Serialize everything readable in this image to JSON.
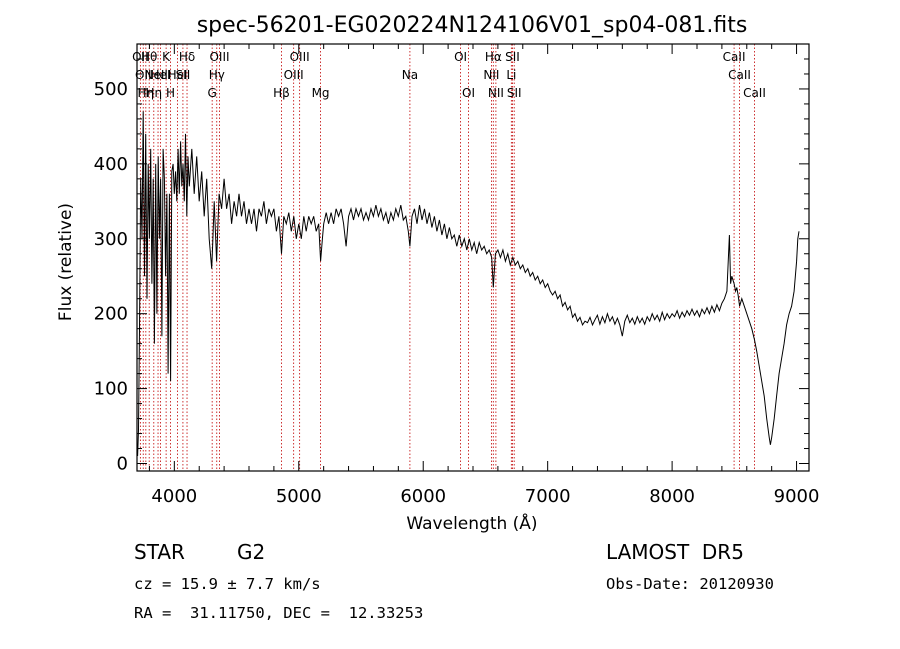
{
  "chart_data": {
    "type": "line",
    "title": "spec-56201-EG020224N124106V01_sp04-081.fits",
    "xlabel": "Wavelength (Å)",
    "ylabel": "Flux (relative)",
    "xlim": [
      3700,
      9100
    ],
    "ylim": [
      -10,
      560
    ],
    "x_ticks": [
      4000,
      5000,
      6000,
      7000,
      8000,
      9000
    ],
    "y_ticks": [
      0,
      100,
      200,
      300,
      400,
      500
    ],
    "grid": false,
    "line_color": "#000000",
    "marker_color": "#c00000",
    "spectrum": [
      [
        3705,
        10
      ],
      [
        3712,
        45
      ],
      [
        3720,
        180
      ],
      [
        3730,
        380
      ],
      [
        3740,
        300
      ],
      [
        3750,
        470
      ],
      [
        3760,
        250
      ],
      [
        3770,
        440
      ],
      [
        3780,
        220
      ],
      [
        3790,
        400
      ],
      [
        3800,
        300
      ],
      [
        3810,
        420
      ],
      [
        3820,
        240
      ],
      [
        3830,
        380
      ],
      [
        3840,
        160
      ],
      [
        3850,
        400
      ],
      [
        3860,
        200
      ],
      [
        3870,
        410
      ],
      [
        3880,
        300
      ],
      [
        3890,
        380
      ],
      [
        3900,
        170
      ],
      [
        3910,
        420
      ],
      [
        3920,
        380
      ],
      [
        3930,
        250
      ],
      [
        3940,
        360
      ],
      [
        3950,
        120
      ],
      [
        3960,
        360
      ],
      [
        3970,
        110
      ],
      [
        3980,
        390
      ],
      [
        3990,
        400
      ],
      [
        4000,
        360
      ],
      [
        4010,
        390
      ],
      [
        4020,
        350
      ],
      [
        4030,
        420
      ],
      [
        4040,
        360
      ],
      [
        4050,
        430
      ],
      [
        4060,
        370
      ],
      [
        4070,
        400
      ],
      [
        4080,
        350
      ],
      [
        4090,
        440
      ],
      [
        4100,
        330
      ],
      [
        4110,
        410
      ],
      [
        4120,
        370
      ],
      [
        4140,
        420
      ],
      [
        4160,
        360
      ],
      [
        4180,
        410
      ],
      [
        4200,
        350
      ],
      [
        4220,
        390
      ],
      [
        4240,
        330
      ],
      [
        4260,
        380
      ],
      [
        4280,
        300
      ],
      [
        4300,
        260
      ],
      [
        4310,
        300
      ],
      [
        4320,
        350
      ],
      [
        4340,
        270
      ],
      [
        4360,
        360
      ],
      [
        4380,
        340
      ],
      [
        4400,
        380
      ],
      [
        4420,
        340
      ],
      [
        4440,
        360
      ],
      [
        4460,
        320
      ],
      [
        4480,
        350
      ],
      [
        4500,
        330
      ],
      [
        4520,
        360
      ],
      [
        4540,
        330
      ],
      [
        4560,
        350
      ],
      [
        4580,
        320
      ],
      [
        4600,
        340
      ],
      [
        4620,
        320
      ],
      [
        4640,
        340
      ],
      [
        4660,
        310
      ],
      [
        4680,
        340
      ],
      [
        4700,
        330
      ],
      [
        4720,
        350
      ],
      [
        4740,
        320
      ],
      [
        4760,
        340
      ],
      [
        4780,
        330
      ],
      [
        4800,
        340
      ],
      [
        4820,
        310
      ],
      [
        4840,
        330
      ],
      [
        4861,
        280
      ],
      [
        4880,
        330
      ],
      [
        4900,
        320
      ],
      [
        4920,
        335
      ],
      [
        4940,
        310
      ],
      [
        4960,
        330
      ],
      [
        4980,
        300
      ],
      [
        5000,
        320
      ],
      [
        5020,
        300
      ],
      [
        5040,
        330
      ],
      [
        5060,
        310
      ],
      [
        5080,
        330
      ],
      [
        5100,
        320
      ],
      [
        5120,
        330
      ],
      [
        5140,
        310
      ],
      [
        5160,
        320
      ],
      [
        5175,
        270
      ],
      [
        5190,
        300
      ],
      [
        5200,
        320
      ],
      [
        5220,
        335
      ],
      [
        5240,
        320
      ],
      [
        5260,
        335
      ],
      [
        5280,
        320
      ],
      [
        5300,
        340
      ],
      [
        5320,
        330
      ],
      [
        5340,
        340
      ],
      [
        5360,
        320
      ],
      [
        5380,
        290
      ],
      [
        5400,
        330
      ],
      [
        5420,
        340
      ],
      [
        5440,
        325
      ],
      [
        5460,
        340
      ],
      [
        5480,
        330
      ],
      [
        5500,
        340
      ],
      [
        5520,
        325
      ],
      [
        5540,
        335
      ],
      [
        5560,
        325
      ],
      [
        5580,
        340
      ],
      [
        5600,
        330
      ],
      [
        5620,
        345
      ],
      [
        5640,
        330
      ],
      [
        5660,
        340
      ],
      [
        5680,
        325
      ],
      [
        5700,
        335
      ],
      [
        5720,
        320
      ],
      [
        5740,
        335
      ],
      [
        5760,
        325
      ],
      [
        5780,
        340
      ],
      [
        5800,
        330
      ],
      [
        5820,
        345
      ],
      [
        5840,
        325
      ],
      [
        5860,
        330
      ],
      [
        5880,
        310
      ],
      [
        5893,
        290
      ],
      [
        5910,
        330
      ],
      [
        5930,
        340
      ],
      [
        5950,
        320
      ],
      [
        5970,
        345
      ],
      [
        5990,
        325
      ],
      [
        6010,
        340
      ],
      [
        6030,
        320
      ],
      [
        6050,
        335
      ],
      [
        6070,
        315
      ],
      [
        6090,
        330
      ],
      [
        6110,
        310
      ],
      [
        6130,
        325
      ],
      [
        6150,
        305
      ],
      [
        6170,
        320
      ],
      [
        6190,
        300
      ],
      [
        6210,
        315
      ],
      [
        6230,
        300
      ],
      [
        6250,
        305
      ],
      [
        6270,
        290
      ],
      [
        6290,
        305
      ],
      [
        6310,
        290
      ],
      [
        6330,
        300
      ],
      [
        6350,
        285
      ],
      [
        6370,
        300
      ],
      [
        6390,
        285
      ],
      [
        6410,
        295
      ],
      [
        6430,
        280
      ],
      [
        6450,
        295
      ],
      [
        6470,
        285
      ],
      [
        6490,
        290
      ],
      [
        6510,
        280
      ],
      [
        6530,
        285
      ],
      [
        6550,
        275
      ],
      [
        6563,
        235
      ],
      [
        6580,
        280
      ],
      [
        6600,
        285
      ],
      [
        6620,
        275
      ],
      [
        6640,
        285
      ],
      [
        6660,
        270
      ],
      [
        6680,
        280
      ],
      [
        6700,
        265
      ],
      [
        6720,
        275
      ],
      [
        6740,
        265
      ],
      [
        6760,
        270
      ],
      [
        6780,
        260
      ],
      [
        6800,
        265
      ],
      [
        6820,
        255
      ],
      [
        6840,
        260
      ],
      [
        6860,
        250
      ],
      [
        6880,
        255
      ],
      [
        6900,
        245
      ],
      [
        6920,
        250
      ],
      [
        6940,
        240
      ],
      [
        6960,
        245
      ],
      [
        6980,
        235
      ],
      [
        7000,
        240
      ],
      [
        7020,
        230
      ],
      [
        7040,
        225
      ],
      [
        7060,
        230
      ],
      [
        7080,
        220
      ],
      [
        7100,
        225
      ],
      [
        7120,
        210
      ],
      [
        7140,
        215
      ],
      [
        7160,
        205
      ],
      [
        7180,
        210
      ],
      [
        7200,
        195
      ],
      [
        7220,
        200
      ],
      [
        7240,
        190
      ],
      [
        7260,
        195
      ],
      [
        7280,
        185
      ],
      [
        7300,
        190
      ],
      [
        7320,
        188
      ],
      [
        7340,
        195
      ],
      [
        7360,
        185
      ],
      [
        7380,
        192
      ],
      [
        7400,
        198
      ],
      [
        7420,
        186
      ],
      [
        7440,
        196
      ],
      [
        7460,
        188
      ],
      [
        7480,
        200
      ],
      [
        7500,
        190
      ],
      [
        7520,
        196
      ],
      [
        7540,
        186
      ],
      [
        7560,
        194
      ],
      [
        7580,
        185
      ],
      [
        7600,
        170
      ],
      [
        7620,
        190
      ],
      [
        7640,
        198
      ],
      [
        7660,
        188
      ],
      [
        7680,
        194
      ],
      [
        7700,
        186
      ],
      [
        7720,
        196
      ],
      [
        7740,
        188
      ],
      [
        7760,
        194
      ],
      [
        7780,
        186
      ],
      [
        7800,
        196
      ],
      [
        7820,
        190
      ],
      [
        7840,
        200
      ],
      [
        7860,
        192
      ],
      [
        7880,
        198
      ],
      [
        7900,
        190
      ],
      [
        7920,
        202
      ],
      [
        7940,
        192
      ],
      [
        7960,
        200
      ],
      [
        7980,
        194
      ],
      [
        8000,
        200
      ],
      [
        8020,
        196
      ],
      [
        8040,
        204
      ],
      [
        8060,
        194
      ],
      [
        8080,
        202
      ],
      [
        8100,
        196
      ],
      [
        8120,
        204
      ],
      [
        8140,
        198
      ],
      [
        8160,
        206
      ],
      [
        8180,
        198
      ],
      [
        8200,
        204
      ],
      [
        8220,
        196
      ],
      [
        8240,
        206
      ],
      [
        8260,
        200
      ],
      [
        8280,
        208
      ],
      [
        8300,
        200
      ],
      [
        8320,
        210
      ],
      [
        8340,
        202
      ],
      [
        8360,
        212
      ],
      [
        8380,
        204
      ],
      [
        8400,
        214
      ],
      [
        8420,
        220
      ],
      [
        8440,
        230
      ],
      [
        8460,
        305
      ],
      [
        8470,
        240
      ],
      [
        8480,
        250
      ],
      [
        8498,
        240
      ],
      [
        8510,
        230
      ],
      [
        8520,
        235
      ],
      [
        8530,
        225
      ],
      [
        8542,
        210
      ],
      [
        8560,
        220
      ],
      [
        8580,
        210
      ],
      [
        8600,
        200
      ],
      [
        8620,
        190
      ],
      [
        8640,
        180
      ],
      [
        8662,
        165
      ],
      [
        8680,
        150
      ],
      [
        8700,
        130
      ],
      [
        8720,
        110
      ],
      [
        8740,
        90
      ],
      [
        8760,
        60
      ],
      [
        8780,
        35
      ],
      [
        8790,
        25
      ],
      [
        8800,
        35
      ],
      [
        8820,
        60
      ],
      [
        8840,
        90
      ],
      [
        8860,
        120
      ],
      [
        8880,
        140
      ],
      [
        8900,
        160
      ],
      [
        8920,
        185
      ],
      [
        8940,
        200
      ],
      [
        8960,
        210
      ],
      [
        8980,
        230
      ],
      [
        9000,
        270
      ],
      [
        9010,
        300
      ],
      [
        9020,
        310
      ]
    ],
    "line_markers": [
      {
        "wavelength": 3727,
        "labels": [
          "OII"
        ]
      },
      {
        "wavelength": 3750,
        "labels": [
          "",
          "OII"
        ]
      },
      {
        "wavelength": 3771,
        "labels": [
          "",
          "",
          "Hη"
        ]
      },
      {
        "wavelength": 3798,
        "labels": [
          "Hθ"
        ]
      },
      {
        "wavelength": 3835,
        "labels": [
          "",
          "",
          "Hη"
        ]
      },
      {
        "wavelength": 3869,
        "labels": [
          "",
          "NeIII"
        ]
      },
      {
        "wavelength": 3889,
        "labels": [
          "",
          "HeI"
        ]
      },
      {
        "wavelength": 3934,
        "labels": [
          "K"
        ]
      },
      {
        "wavelength": 3969,
        "labels": [
          "",
          "",
          "H"
        ]
      },
      {
        "wavelength": 4026,
        "labels": [
          "",
          "HeI"
        ]
      },
      {
        "wavelength": 4069,
        "labels": [
          "",
          "SII"
        ]
      },
      {
        "wavelength": 4102,
        "labels": [
          "Hδ"
        ]
      },
      {
        "wavelength": 4304,
        "labels": [
          "",
          "",
          "G"
        ]
      },
      {
        "wavelength": 4341,
        "labels": [
          "",
          "Hγ"
        ]
      },
      {
        "wavelength": 4363,
        "labels": [
          "OIII"
        ]
      },
      {
        "wavelength": 4861,
        "labels": [
          "",
          "",
          "Hβ"
        ]
      },
      {
        "wavelength": 4959,
        "labels": [
          "",
          "OIII"
        ]
      },
      {
        "wavelength": 5007,
        "labels": [
          "OIII"
        ]
      },
      {
        "wavelength": 5175,
        "labels": [
          "",
          "",
          "Mg"
        ]
      },
      {
        "wavelength": 5893,
        "labels": [
          "",
          "Na"
        ]
      },
      {
        "wavelength": 6300,
        "labels": [
          "OI"
        ]
      },
      {
        "wavelength": 6364,
        "labels": [
          "",
          "",
          "OI"
        ]
      },
      {
        "wavelength": 6548,
        "labels": [
          "",
          "NII"
        ]
      },
      {
        "wavelength": 6563,
        "labels": [
          "Hα"
        ]
      },
      {
        "wavelength": 6584,
        "labels": [
          "",
          "",
          "NII"
        ]
      },
      {
        "wavelength": 6708,
        "labels": [
          "",
          "Li"
        ]
      },
      {
        "wavelength": 6717,
        "labels": [
          "SII"
        ]
      },
      {
        "wavelength": 6731,
        "labels": [
          "",
          "",
          "SII"
        ]
      },
      {
        "wavelength": 8498,
        "labels": [
          "CaII"
        ]
      },
      {
        "wavelength": 8542,
        "labels": [
          "",
          "CaII"
        ]
      },
      {
        "wavelength": 8662,
        "labels": [
          "",
          "",
          "CaII"
        ]
      }
    ]
  },
  "info": {
    "class": "STAR",
    "subclass": "G2",
    "survey": "LAMOST  DR5",
    "redshift": "cz = 15.9 ± 7.7 km/s",
    "obs_date": "Obs-Date: 20120930",
    "coords": "RA =  31.11750, DEC =  12.33253"
  }
}
